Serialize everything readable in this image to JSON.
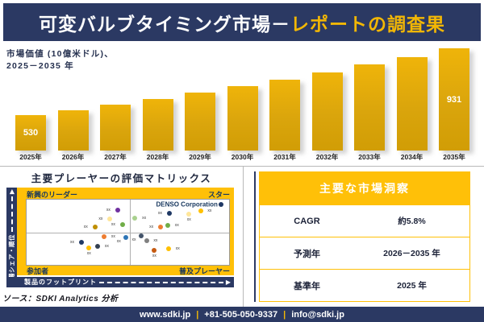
{
  "banner": {
    "title_white": "可変バルブタイミング市場－",
    "title_gold": "レポートの調査果"
  },
  "chart": {
    "axis_caption_line1": "市場価値 (10億米ドル)、",
    "axis_caption_line2": "2025－2035 年"
  },
  "chart_data": {
    "type": "bar",
    "title": "市場価値 (10億米ドル)、2025－2035 年",
    "categories": [
      "2025年",
      "2026年",
      "2027年",
      "2028年",
      "2029年",
      "2030年",
      "2031年",
      "2032年",
      "2033年",
      "2034年",
      "2035年"
    ],
    "values": [
      530,
      561,
      593,
      628,
      664,
      703,
      743,
      786,
      832,
      880,
      931
    ],
    "labeled_points": {
      "first": "530",
      "last": "931"
    },
    "xlabel": "",
    "ylabel": "市場価値 (10億米ドル)",
    "ylim": [
      317,
      931
    ],
    "grid": false,
    "bar_color": "#DAA50C"
  },
  "matrix": {
    "title": "主要プレーヤーの評価マトリックス",
    "quadrants": {
      "top_left": "新興のリーダー",
      "top_right": "スター",
      "bottom_left": "参加者",
      "bottom_right": "普及プレーヤー"
    },
    "x_axis_label": "製品のフットプリント",
    "y_axis_label": "市場シェア・順位",
    "highlighted_company": "DENSO Corporation",
    "generic_point_label": "xx",
    "points": [
      {
        "x": 44.9,
        "y": 16.5,
        "color": "#7030A0",
        "side": "l"
      },
      {
        "x": 41.1,
        "y": 29.8,
        "color": "#FFE699",
        "side": "l"
      },
      {
        "x": 33.7,
        "y": 42.5,
        "color": "#BF8F00",
        "side": "l"
      },
      {
        "x": 47.3,
        "y": 38.6,
        "color": "#70AD47",
        "side": "l"
      },
      {
        "x": 38.3,
        "y": 57.0,
        "color": "#ED7D31",
        "side": "r"
      },
      {
        "x": 49.0,
        "y": 57.8,
        "color": "#2E75B6",
        "side": "bl"
      },
      {
        "x": 27.0,
        "y": 65.1,
        "color": "#1F3864",
        "side": "l"
      },
      {
        "x": 30.8,
        "y": 73.9,
        "color": "#FFC000",
        "side": "b"
      },
      {
        "x": 35.1,
        "y": 71.1,
        "color": "#333F50",
        "side": "r"
      },
      {
        "x": 96.0,
        "y": 6.9,
        "color": "#1F3864",
        "side": "denso"
      },
      {
        "x": 70.4,
        "y": 20.8,
        "color": "#1F3864",
        "side": "l"
      },
      {
        "x": 80.2,
        "y": 22.0,
        "color": "#FFE699",
        "side": "b"
      },
      {
        "x": 85.9,
        "y": 16.9,
        "color": "#FFC000",
        "side": "r"
      },
      {
        "x": 53.5,
        "y": 28.9,
        "color": "#A9D18E",
        "side": "r"
      },
      {
        "x": 66.1,
        "y": 41.8,
        "color": "#ED7D31",
        "side": "l"
      },
      {
        "x": 69.7,
        "y": 39.8,
        "color": "#70AD47",
        "side": "r"
      },
      {
        "x": 56.5,
        "y": 55.0,
        "color": "#44546A",
        "side": "bl"
      },
      {
        "x": 59.2,
        "y": 63.0,
        "color": "#808080",
        "side": "r"
      },
      {
        "x": 63.1,
        "y": 77.9,
        "color": "#C55A11",
        "side": "b"
      },
      {
        "x": 70.1,
        "y": 75.9,
        "color": "#FFC000",
        "side": "r"
      }
    ]
  },
  "insights": {
    "title": "主要な市場洞察",
    "rows": [
      {
        "label": "CAGR",
        "value": "約5.8%"
      },
      {
        "label": "予測年",
        "value": "2026－2035 年"
      },
      {
        "label": "基準年",
        "value": "2025 年"
      }
    ]
  },
  "source_note": "ソース：SDKI Analytics  分析",
  "footer": {
    "items": [
      "www.sdki.jp",
      "+81-505-050-9337",
      "info@sdki.jp"
    ],
    "separator": "|"
  },
  "colors": {
    "navy": "#2B3963",
    "gold": "#FFC008",
    "title_gold": "#F2B705",
    "bar_gold": "#DAA50C"
  }
}
